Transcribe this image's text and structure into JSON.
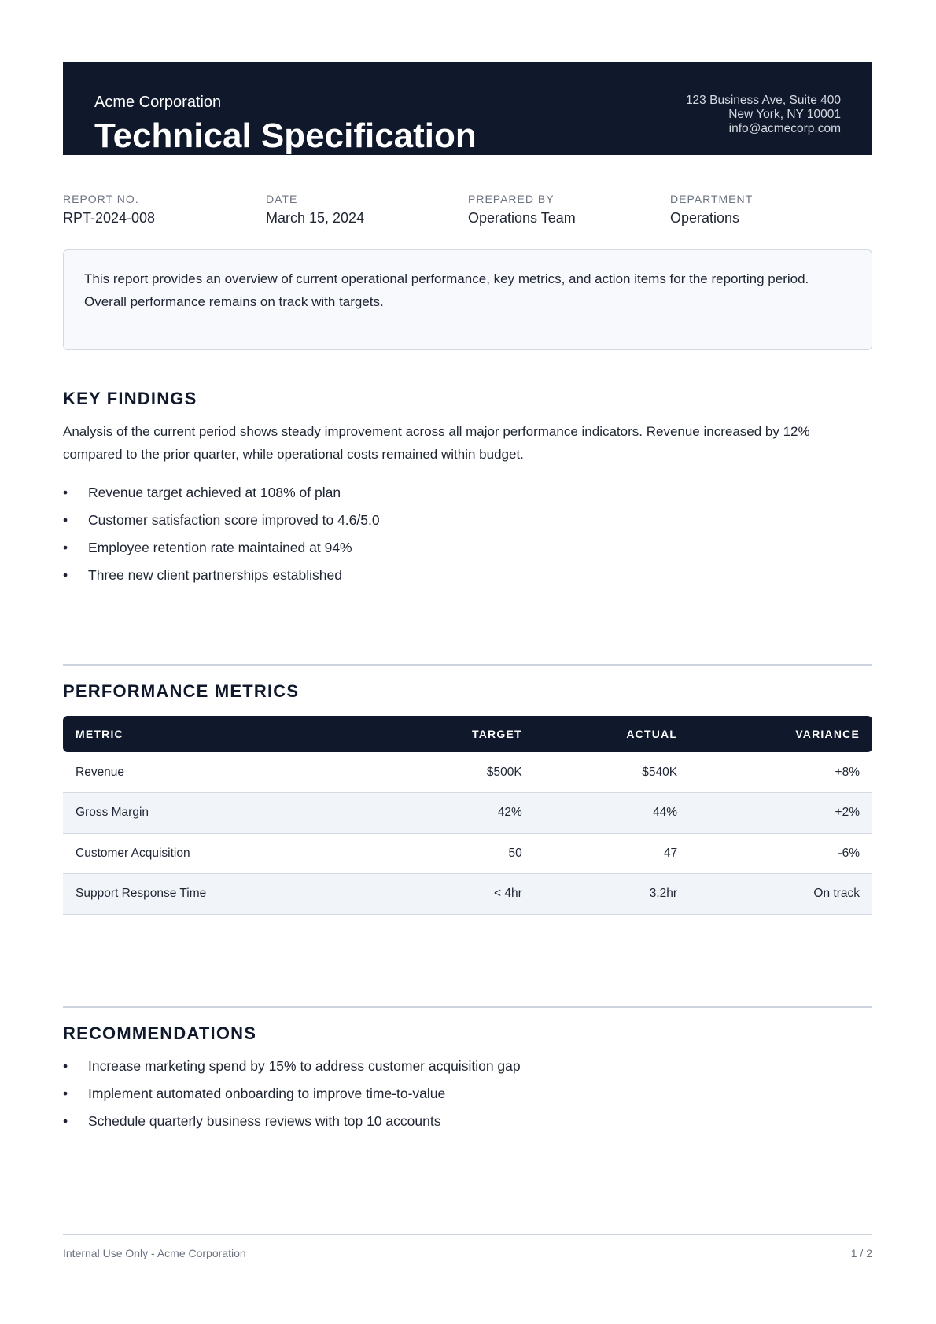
{
  "header": {
    "company": "Acme Corporation",
    "title": "Technical Specification",
    "address": [
      "123 Business Ave, Suite 400",
      "New York, NY 10001",
      "info@acmecorp.com"
    ]
  },
  "meta": [
    {
      "label": "REPORT NO.",
      "value": "RPT-2024-008"
    },
    {
      "label": "DATE",
      "value": "March 15, 2024"
    },
    {
      "label": "PREPARED BY",
      "value": "Operations Team"
    },
    {
      "label": "DEPARTMENT",
      "value": "Operations"
    }
  ],
  "summary": "This report provides an overview of current operational performance, key metrics, and action items for the reporting period. Overall performance remains on track with targets.",
  "key_findings": {
    "heading": "KEY FINDINGS",
    "paragraph": "Analysis of the current period shows steady improvement across all major performance indicators. Revenue increased by 12% compared to the prior quarter, while operational costs remained within budget.",
    "bullets": [
      "Revenue target achieved at 108% of plan",
      "Customer satisfaction score improved to 4.6/5.0",
      "Employee retention rate maintained at 94%",
      "Three new client partnerships established"
    ]
  },
  "metrics": {
    "heading": "PERFORMANCE METRICS",
    "columns": [
      "METRIC",
      "TARGET",
      "ACTUAL",
      "VARIANCE"
    ],
    "rows": [
      [
        "Revenue",
        "$500K",
        "$540K",
        "+8%"
      ],
      [
        "Gross Margin",
        "42%",
        "44%",
        "+2%"
      ],
      [
        "Customer Acquisition",
        "50",
        "47",
        "-6%"
      ],
      [
        "Support Response Time",
        "< 4hr",
        "3.2hr",
        "On track"
      ]
    ]
  },
  "recommendations": {
    "heading": "RECOMMENDATIONS",
    "bullets": [
      "Increase marketing spend by 15% to address customer acquisition gap",
      "Implement automated onboarding to improve time-to-value",
      "Schedule quarterly business reviews with top 10 accounts"
    ]
  },
  "footer": {
    "left": "Internal Use Only - Acme Corporation",
    "right": "1 / 2"
  }
}
